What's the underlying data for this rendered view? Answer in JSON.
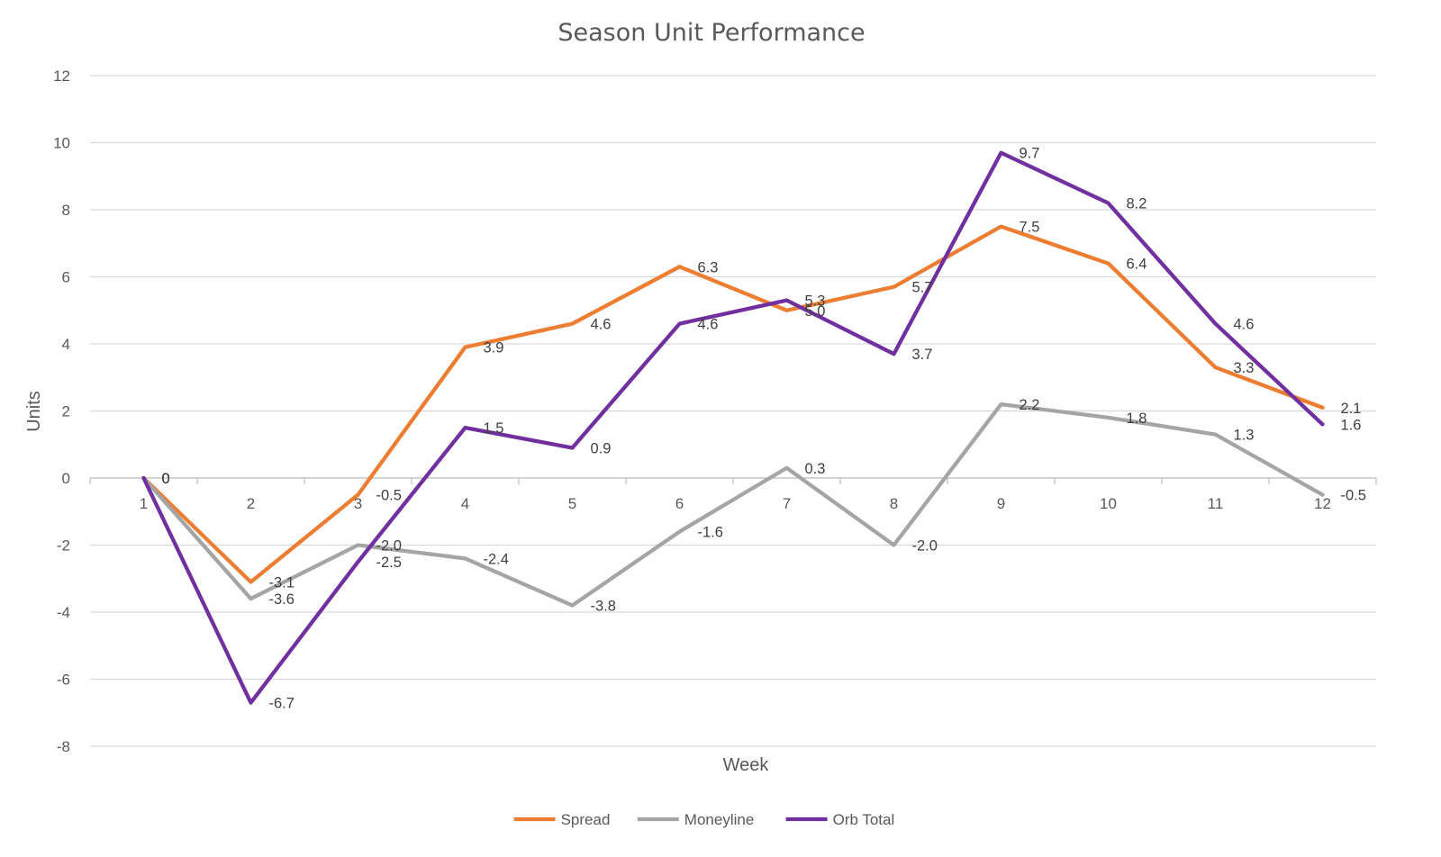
{
  "chart_data": {
    "type": "line",
    "title": "Season Unit Performance",
    "xlabel": "Week",
    "ylabel": "Units",
    "categories": [
      "1",
      "2",
      "3",
      "4",
      "5",
      "6",
      "7",
      "8",
      "9",
      "10",
      "11",
      "12"
    ],
    "ylim": [
      -8,
      12
    ],
    "yticks": [
      "12",
      "10",
      "8",
      "6",
      "4",
      "2",
      "0",
      "-2",
      "-4",
      "-6",
      "-8"
    ],
    "grid": true,
    "legend_position": "bottom",
    "series": [
      {
        "name": "Spread",
        "color": "#ED7D31",
        "values": [
          0,
          -3.1,
          -0.5,
          3.9,
          4.6,
          6.3,
          5.0,
          5.7,
          7.5,
          6.4,
          3.3,
          2.1
        ],
        "labels": [
          "0",
          "-3.1",
          "-0.5",
          "3.9",
          "4.6",
          "6.3",
          "5.0",
          "5.7",
          "7.5",
          "6.4",
          "3.3",
          "2.1"
        ]
      },
      {
        "name": "Moneyline",
        "color": "#A5A5A5",
        "values": [
          0,
          -3.6,
          -2.0,
          -2.4,
          -3.8,
          -1.6,
          0.3,
          -2.0,
          2.2,
          1.8,
          1.3,
          -0.5
        ],
        "labels": [
          "0",
          "-3.6",
          "-2.0",
          "-2.4",
          "-3.8",
          "-1.6",
          "0.3",
          "-2.0",
          "2.2",
          "1.8",
          "1.3",
          "-0.5"
        ]
      },
      {
        "name": "Orb Total",
        "color": "#7030A0",
        "values": [
          0,
          -6.7,
          -2.5,
          1.5,
          0.9,
          4.6,
          5.3,
          3.7,
          9.7,
          8.2,
          4.6,
          1.6
        ],
        "labels": [
          "0",
          "-6.7",
          "-2.5",
          "1.5",
          "0.9",
          "4.6",
          "5.3",
          "3.7",
          "9.7",
          "8.2",
          "4.6",
          "1.6"
        ]
      }
    ]
  }
}
